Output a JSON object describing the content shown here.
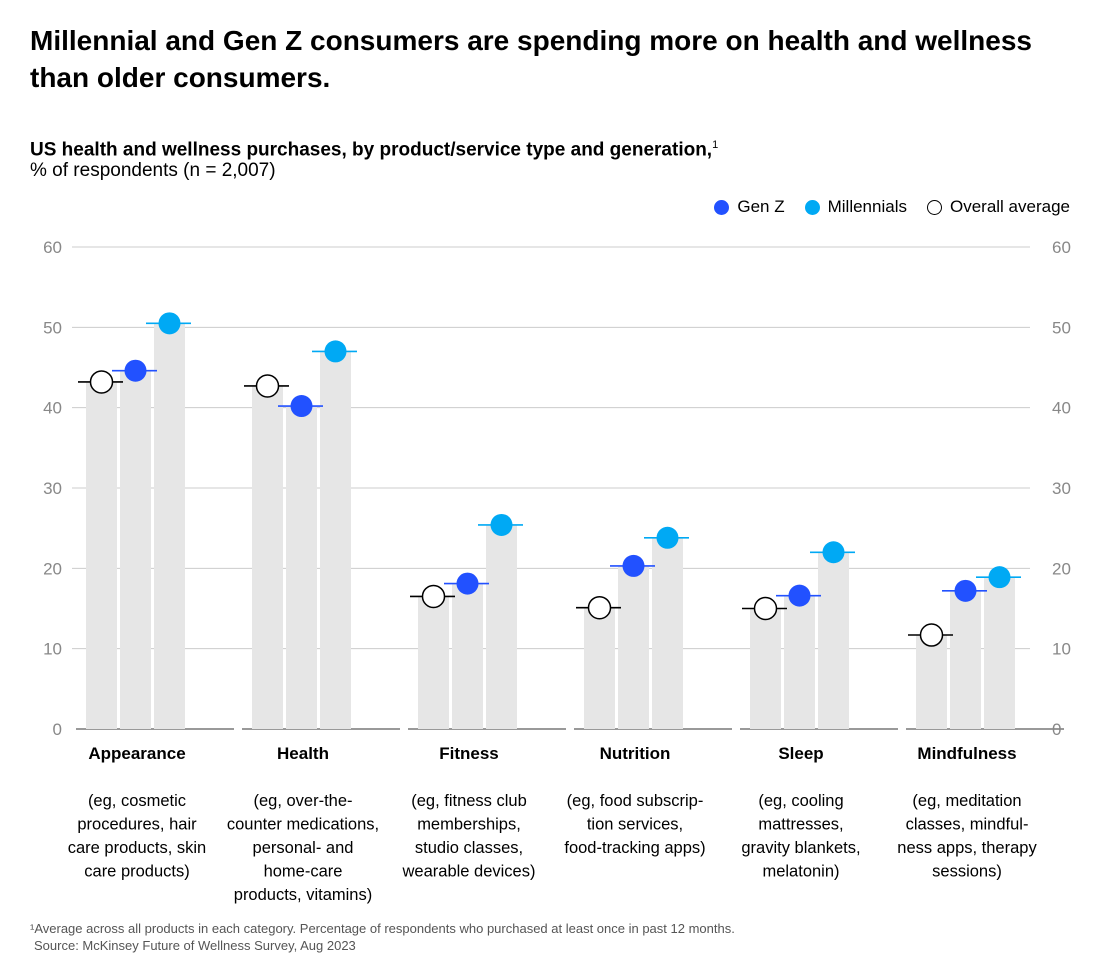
{
  "headline": "Millennial and Gen Z consumers are spending more on health and wellness than older consumers.",
  "subtitle": "US health and wellness purchases, by product/service type and generation,",
  "subtitle_footnote_mark": "1",
  "units": "% of respondents (n = 2,007)",
  "legend": [
    {
      "name": "Gen Z",
      "color": "#2251ff"
    },
    {
      "name": "Millennials",
      "color": "#00a9f4"
    },
    {
      "name": "Overall average",
      "color": "#ffffff"
    }
  ],
  "colors": {
    "bar": "#e6e6e6",
    "gen_z": "#2251ff",
    "millennials": "#00a9f4",
    "average_fill": "#ffffff",
    "average_stroke": "#000000",
    "grid": "#cccccc"
  },
  "chart_data": {
    "type": "bar",
    "ylim": [
      0,
      60
    ],
    "yticks": [
      0,
      10,
      20,
      30,
      40,
      50,
      60
    ],
    "categories": [
      "Appearance",
      "Health",
      "Fitness",
      "Nutrition",
      "Sleep",
      "Mindfulness"
    ],
    "category_descriptions": [
      [
        "(eg, cosmetic",
        "procedures, hair",
        "care products, skin",
        "care products)"
      ],
      [
        "(eg, over-the-",
        "counter medications,",
        "personal- and",
        "home-care",
        "products, vitamins)"
      ],
      [
        "(eg, fitness club",
        "memberships,",
        "studio classes,",
        "wearable devices)"
      ],
      [
        "(eg, food subscrip-",
        "tion services,",
        "food-tracking apps)"
      ],
      [
        "(eg, cooling",
        "mattresses,",
        "gravity blankets,",
        "melatonin)"
      ],
      [
        "(eg, meditation",
        "classes, mindful-",
        "ness apps, therapy",
        "sessions)"
      ]
    ],
    "series": [
      {
        "name": "Overall average",
        "values": [
          43.2,
          42.7,
          16.5,
          15.1,
          15.0,
          11.7
        ]
      },
      {
        "name": "Gen Z",
        "values": [
          44.6,
          40.2,
          18.1,
          20.3,
          16.6,
          17.2
        ]
      },
      {
        "name": "Millennials",
        "values": [
          50.5,
          47.0,
          25.4,
          23.8,
          22.0,
          18.9
        ]
      }
    ],
    "grid": true,
    "legend_position": "top-right"
  },
  "footnote": {
    "line1": "¹Average across all products in each category. Percentage of respondents who purchased at least once in past 12 months.",
    "line2": "Source: McKinsey Future of Wellness Survey, Aug 2023"
  }
}
